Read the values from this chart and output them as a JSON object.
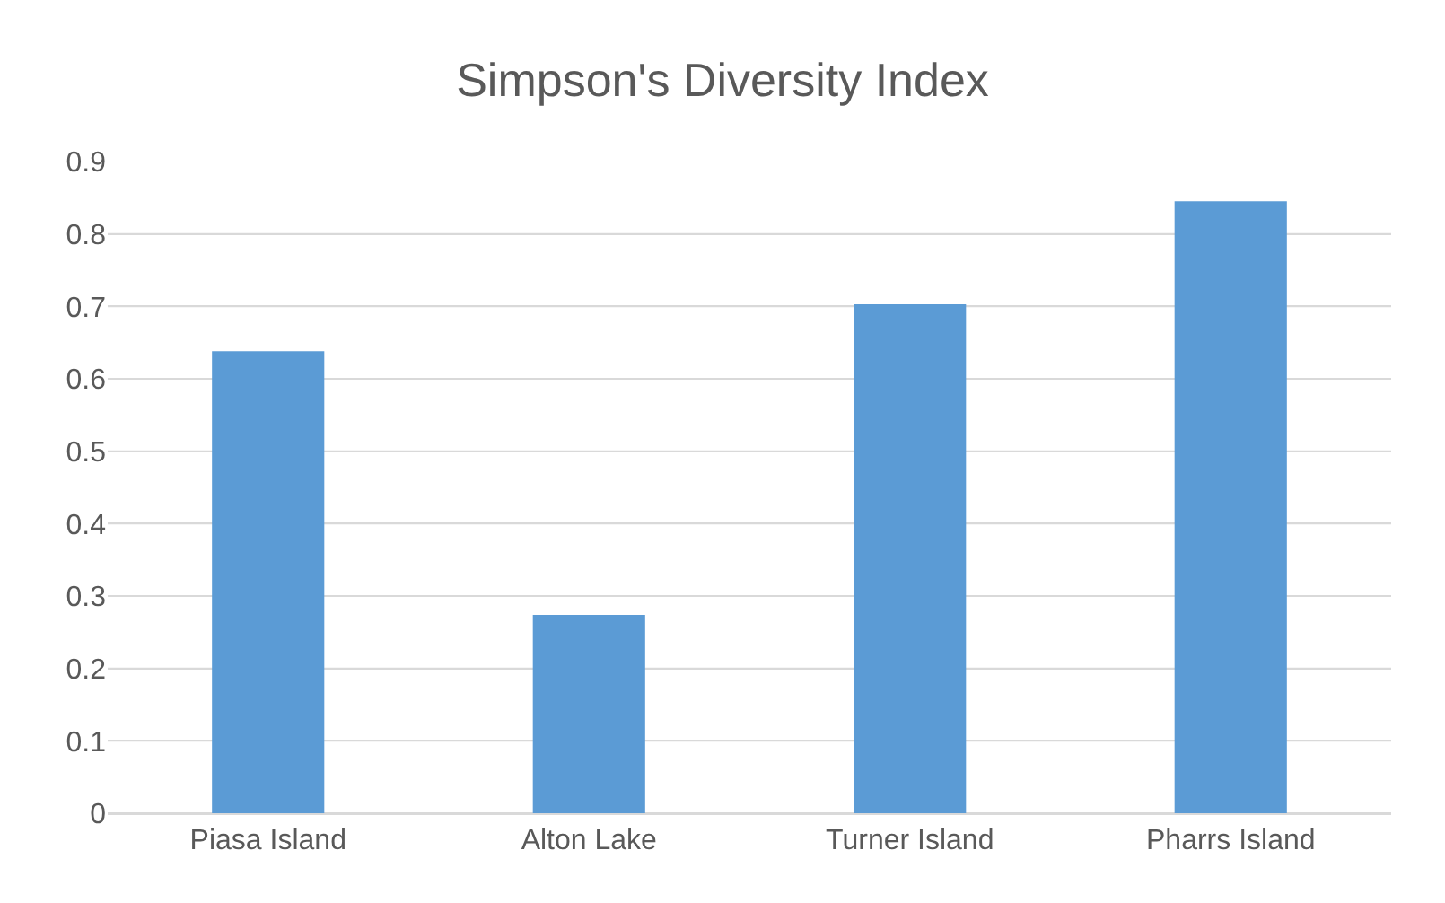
{
  "chart_data": {
    "type": "bar",
    "title": "Simpson's Diversity Index",
    "categories": [
      "Piasa Island",
      "Alton Lake",
      "Turner Island",
      "Pharrs Island"
    ],
    "values": [
      0.638,
      0.274,
      0.703,
      0.845
    ],
    "color": "#5b9bd5",
    "ylim": [
      0,
      0.9
    ],
    "yticks": [
      0,
      0.1,
      0.2,
      0.3,
      0.4,
      0.5,
      0.6,
      0.7,
      0.8,
      0.9
    ],
    "grid": "y"
  }
}
